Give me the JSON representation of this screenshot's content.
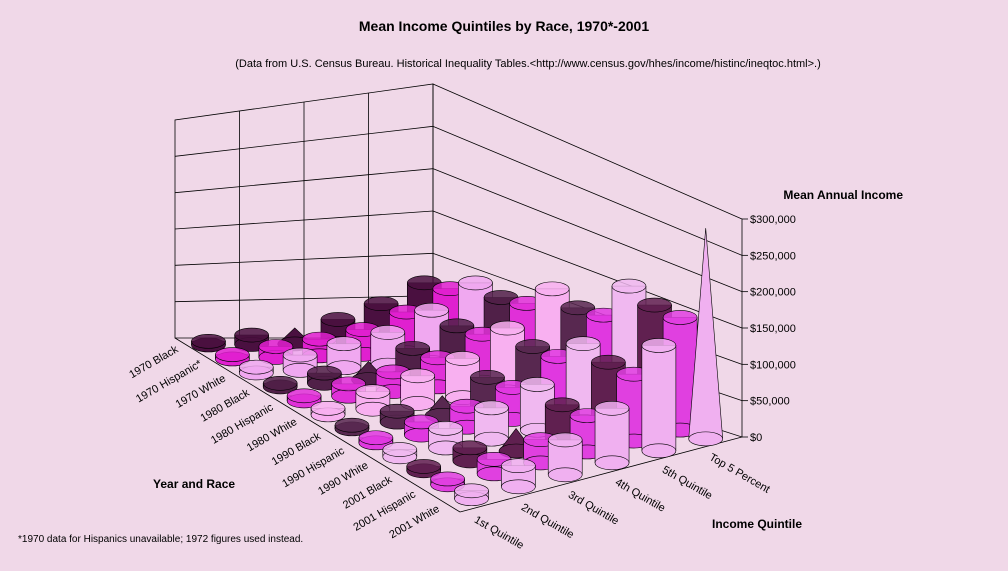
{
  "chart_data": {
    "type": "bar",
    "style": "3d-cylinder-cone",
    "title": "Mean Income Quintiles by Race, 1970*-2001",
    "subtitle": "(Data from U.S. Census Bureau. Historical Inequality Tables.<http://www.census.gov/hhes/income/histinc/ineqtoc.html>.)",
    "zlabel": "Mean Annual Income",
    "ylabel": "Year and Race",
    "xlabel": "Income Quintile",
    "footnote": "*1970 data for Hispanics unavailable; 1972 figures used instead.",
    "zlim": [
      0,
      300000
    ],
    "z_ticks": [
      "$0",
      "$50,000",
      "$100,000",
      "$150,000",
      "$200,000",
      "$250,000",
      "$300,000"
    ],
    "categories": [
      "1st Quintile",
      "2nd Quintile",
      "3rd Quintile",
      "4th Quintile",
      "5th Quintile",
      "Top 5 Percent"
    ],
    "series": [
      {
        "name": "1970 Black",
        "color": "#4a1040",
        "values": [
          5000,
          13000,
          22000,
          33000,
          54000,
          82000
        ]
      },
      {
        "name": "1970 Hispanic*",
        "color": "#e020d0",
        "values": [
          6000,
          15000,
          23000,
          34000,
          56000,
          86000
        ]
      },
      {
        "name": "1970 White",
        "color": "#f0a8f0",
        "values": [
          8000,
          21000,
          33000,
          45000,
          72000,
          106000
        ]
      },
      {
        "name": "1980 Black",
        "color": "#502048",
        "values": [
          5000,
          14000,
          25000,
          38000,
          64000,
          98000
        ]
      },
      {
        "name": "1980 Hispanic",
        "color": "#e030d8",
        "values": [
          7000,
          17000,
          27000,
          40000,
          66000,
          102000
        ]
      },
      {
        "name": "1980 White",
        "color": "#f8b0f0",
        "values": [
          9000,
          24000,
          38000,
          54000,
          88000,
          134000
        ]
      },
      {
        "name": "1990 Black",
        "color": "#582850",
        "values": [
          5000,
          15000,
          27000,
          43000,
          76000,
          120000
        ]
      },
      {
        "name": "1990 Hispanic",
        "color": "#e038e0",
        "values": [
          7000,
          18000,
          29000,
          44000,
          76000,
          122000
        ]
      },
      {
        "name": "1990 White",
        "color": "#f0b8f0",
        "values": [
          10000,
          27000,
          43000,
          63000,
          107000,
          174000
        ]
      },
      {
        "name": "2001 Black",
        "color": "#602050",
        "values": [
          6000,
          18000,
          31000,
          50000,
          95000,
          160000
        ]
      },
      {
        "name": "2001 Hispanic",
        "color": "#e040e0",
        "values": [
          8000,
          20000,
          32000,
          50000,
          92000,
          155000
        ]
      },
      {
        "name": "2001 White",
        "color": "#f0b0f0",
        "values": [
          11000,
          29000,
          48000,
          75000,
          145000,
          290000
        ]
      }
    ],
    "grid": true
  }
}
